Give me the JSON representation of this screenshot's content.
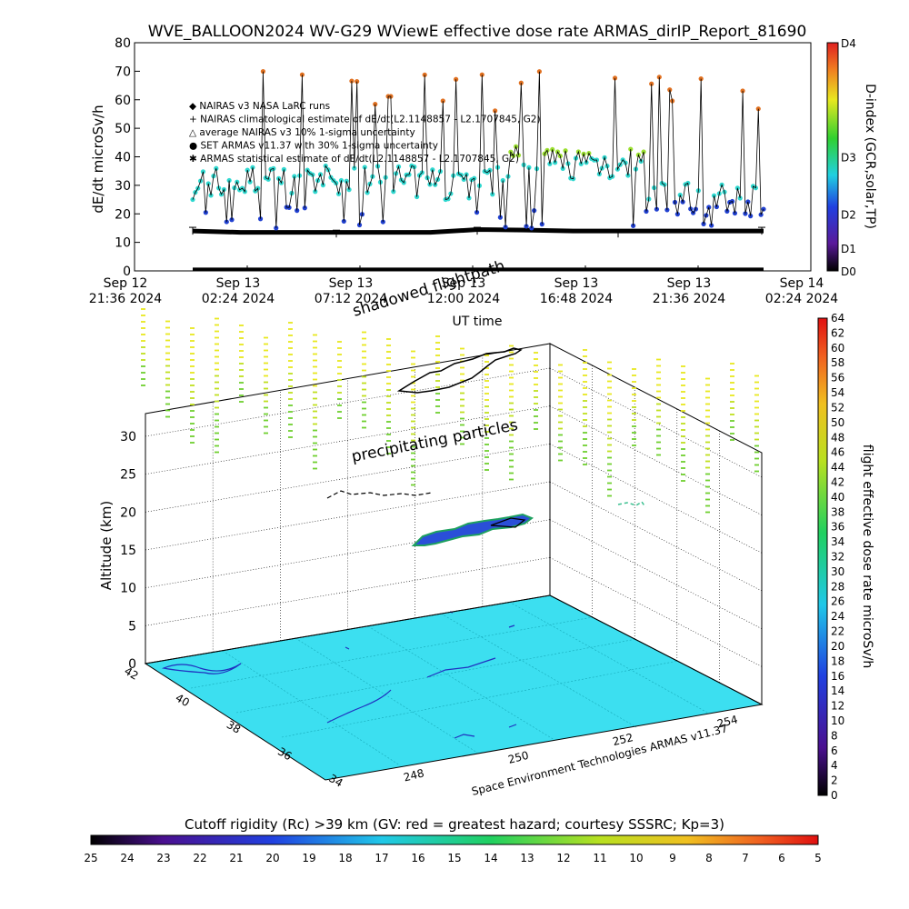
{
  "title": "WVE_BALLOON2024 WV-G29 WViewE effective dose rate ARMAS_dirIP_Report_81690",
  "chart_data": [
    {
      "type": "line",
      "ylabel": "dE/dt microSv/h",
      "xlabel": "UT time",
      "ylim": [
        0,
        80
      ],
      "yticks": [
        "0",
        "10",
        "20",
        "30",
        "40",
        "50",
        "60",
        "70",
        "80"
      ],
      "xticks": [
        {
          "day": "Sep 12",
          "time": "21:36 2024"
        },
        {
          "day": "Sep 13",
          "time": "02:24 2024"
        },
        {
          "day": "Sep 13",
          "time": "07:12 2024"
        },
        {
          "day": "Sep 13",
          "time": "12:00 2024"
        },
        {
          "day": "Sep 13",
          "time": "16:48 2024"
        },
        {
          "day": "Sep 13",
          "time": "21:36 2024"
        },
        {
          "day": "Sep 14",
          "time": "02:24 2024"
        }
      ],
      "legend": [
        "◆ NAIRAS v3 NASA LaRC runs",
        "+ NAIRAS climatological estimate of dE/dt(L2.1148857 - L2.1707845, G2)",
        "△ average NAIRAS v3 10% 1-sigma uncertainty",
        "● SET ARMAS v11.37 with 30% 1-sigma uncertainty",
        "✱ ARMAS statistical estimate of dE/dt(L2.1148857 - L2.1707845, G2)"
      ],
      "right_axis_label": "D-index (GCR,solar,TP)",
      "right_axis_ticks": [
        "D0",
        "D1",
        "D2",
        "D3",
        "D4"
      ],
      "series": [
        {
          "name": "NAIRAS climatological estimate",
          "values": [
            14,
            13.5,
            13.5,
            13.5,
            13.5,
            13.5,
            14.5,
            14.3,
            14,
            14,
            14,
            14,
            14
          ]
        },
        {
          "name": "ARMAS statistical estimate",
          "values": [
            0.5,
            0.5,
            0.5,
            0.5,
            0.5,
            0.5,
            0.5,
            0.5,
            0.5,
            0.5,
            0.5,
            0.5,
            0.5
          ]
        }
      ]
    },
    {
      "type": "scatter",
      "title": "precipitating particles",
      "ylabel": "Altitude (km)",
      "zticks": [
        "0",
        "5",
        "10",
        "15",
        "20",
        "25",
        "30"
      ],
      "lat_ticks": [
        "42",
        "40",
        "38",
        "36",
        "34"
      ],
      "lon_ticks": [
        "248",
        "250",
        "252",
        "254"
      ],
      "labels": [
        "shadowed flightpath",
        "precipitating particles"
      ],
      "colorbar": {
        "label": "flight effective dose rate microSv/h",
        "ticks": [
          "0",
          "2",
          "4",
          "6",
          "8",
          "10",
          "12",
          "14",
          "16",
          "18",
          "20",
          "22",
          "24",
          "26",
          "28",
          "30",
          "32",
          "34",
          "36",
          "38",
          "40",
          "42",
          "44",
          "46",
          "48",
          "50",
          "52",
          "54",
          "56",
          "58",
          "60",
          "62",
          "64"
        ]
      }
    }
  ],
  "credit": "Space Environment Technologies ARMAS v11.37",
  "bottom_colorbar": {
    "title": "Cutoff rigidity (Rc) >39 km (GV: red = greatest hazard; courtesy SSSRC; Kp=3)",
    "ticks": [
      "25",
      "24",
      "23",
      "22",
      "21",
      "20",
      "19",
      "18",
      "17",
      "16",
      "15",
      "14",
      "13",
      "12",
      "11",
      "10",
      "9",
      "8",
      "7",
      "6",
      "5"
    ]
  },
  "colors": {
    "ground": "#3cdff0",
    "armas_points": "#2a4fd8",
    "nairas_points": "#e8a030"
  }
}
